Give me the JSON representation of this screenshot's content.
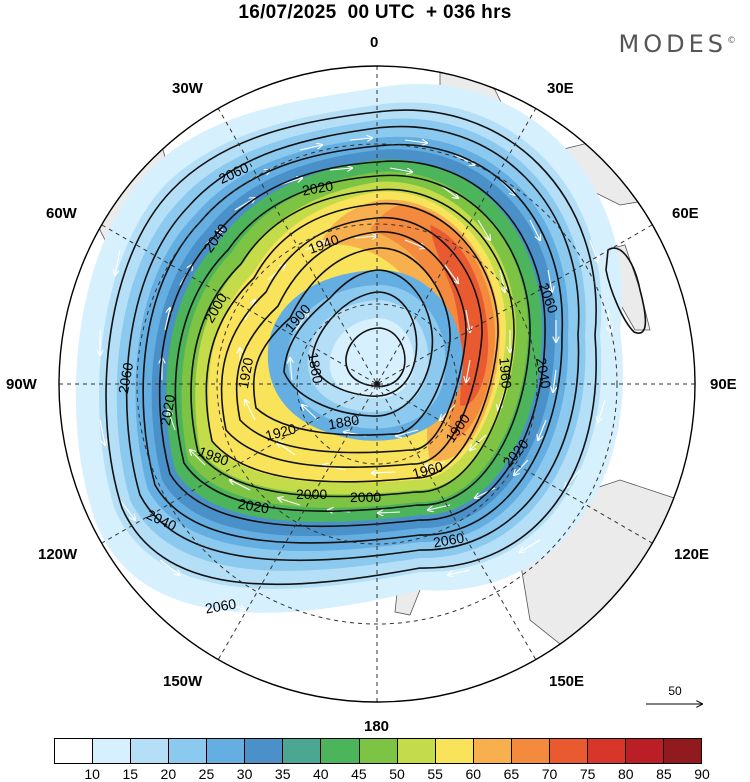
{
  "title": "16/07/2025  00 UTC  + 036 hrs",
  "brand": "MODES",
  "brand_mark": "©",
  "longitude_labels": {
    "lon_0": "0",
    "lon_30e": "30E",
    "lon_60e": "60E",
    "lon_90e": "90E",
    "lon_120e": "120E",
    "lon_150e": "150E",
    "lon_180": "180",
    "lon_150w": "150W",
    "lon_120w": "120W",
    "lon_90w": "90W",
    "lon_60w": "60W",
    "lon_30w": "30W"
  },
  "contour_labels": [
    "2060",
    "2040",
    "2020",
    "2000",
    "1980",
    "1960",
    "1940",
    "1920",
    "1900",
    "1880",
    "1860"
  ],
  "colorbar": {
    "labels": [
      "10",
      "15",
      "20",
      "25",
      "30",
      "35",
      "40",
      "45",
      "50",
      "55",
      "60",
      "65",
      "70",
      "75",
      "80",
      "85",
      "90"
    ],
    "colors": [
      "#ffffff",
      "#d6f0fd",
      "#b4dff7",
      "#8cc9ef",
      "#64aee2",
      "#4a91c9",
      "#4ba692",
      "#4cb45a",
      "#7ec444",
      "#c5dc4a",
      "#f9e35a",
      "#f7b04d",
      "#f38a3d",
      "#ea5a31",
      "#d9362b",
      "#bb1f26",
      "#911a1e"
    ]
  },
  "reference_vector": "50",
  "colors": {
    "land": "#ebebeb",
    "contour": "#111111",
    "arrows": "#ffffff"
  }
}
